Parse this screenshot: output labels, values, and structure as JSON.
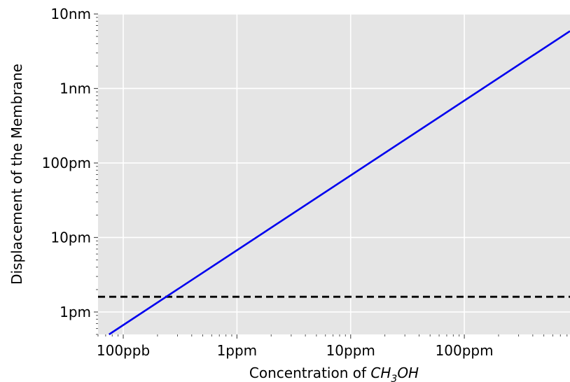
{
  "chart_data": {
    "type": "line",
    "title": "",
    "xlabel_prefix": "Concentration of ",
    "xlabel_formula": {
      "a": "CH",
      "sub": "3",
      "b": "OH"
    },
    "ylabel": "Displacement of the Membrane",
    "xscale": "log",
    "yscale": "log",
    "xlim": [
      6e-08,
      0.00085
    ],
    "ylim": [
      5e-13,
      1e-08
    ],
    "grid": true,
    "background": "#e5e5e5",
    "x_ticks": [
      {
        "value": 1e-07,
        "label": "100ppb"
      },
      {
        "value": 1e-06,
        "label": "1ppm"
      },
      {
        "value": 1e-05,
        "label": "10ppm"
      },
      {
        "value": 0.0001,
        "label": "100ppm"
      }
    ],
    "y_ticks": [
      {
        "value": 1e-12,
        "label": "1pm"
      },
      {
        "value": 1e-11,
        "label": "10pm"
      },
      {
        "value": 1e-10,
        "label": "100pm"
      },
      {
        "value": 1e-09,
        "label": "1nm"
      },
      {
        "value": 1e-08,
        "label": "10nm"
      }
    ],
    "series": [
      {
        "style": "solid",
        "color": "#0000ee",
        "x": [
          7.5e-08,
          0.00085
        ],
        "y": [
          5e-13,
          5.9e-09
        ]
      }
    ],
    "threshold": {
      "style": "dashed",
      "color": "#000000",
      "y": 1.6e-12
    }
  }
}
